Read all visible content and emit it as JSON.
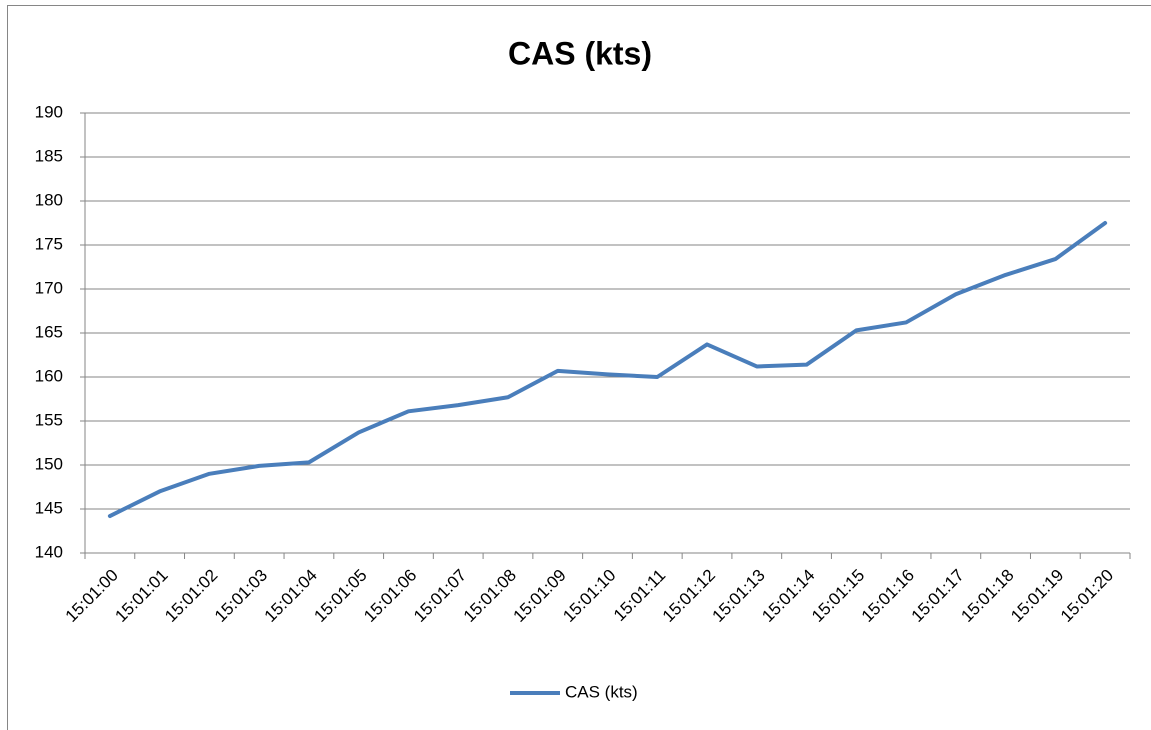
{
  "chart_data": {
    "type": "line",
    "title": "CAS (kts)",
    "categories": [
      "15:01:00",
      "15:01:01",
      "15:01:02",
      "15:01:03",
      "15:01:04",
      "15:01:05",
      "15:01:06",
      "15:01:07",
      "15:01:08",
      "15:01:09",
      "15:01:10",
      "15:01:11",
      "15:01:12",
      "15:01:13",
      "15:01:14",
      "15:01:15",
      "15:01:16",
      "15:01:17",
      "15:01:18",
      "15:01:19",
      "15:01:20"
    ],
    "series": [
      {
        "name": "CAS (kts)",
        "color": "#4a7ebb",
        "values": [
          144.2,
          147.0,
          149.0,
          149.9,
          150.3,
          153.7,
          156.1,
          156.8,
          157.7,
          160.7,
          160.3,
          160.0,
          163.7,
          161.2,
          161.4,
          165.3,
          166.2,
          169.4,
          171.6,
          173.4,
          177.5
        ]
      }
    ],
    "ylim": [
      140,
      190
    ],
    "yticks": [
      140,
      145,
      150,
      155,
      160,
      165,
      170,
      175,
      180,
      185,
      190
    ],
    "grid": true,
    "legend": "bottom"
  }
}
